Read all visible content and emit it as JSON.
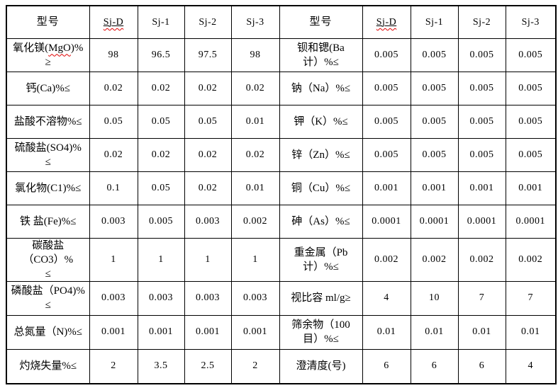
{
  "colors": {
    "spellcheck": "#e00000",
    "border": "#000000",
    "background": "#ffffff",
    "text": "#000000"
  },
  "header": {
    "left_title": "型号",
    "right_title": "型号",
    "models": [
      "Sj-D",
      "Sj-1",
      "Sj-2",
      "Sj-3"
    ],
    "misspelled_model": "Sj-D"
  },
  "rows": [
    {
      "left": {
        "pre": "氧化镁(",
        "mark": "MgO",
        "post": ")%\n≥",
        "values": [
          "98",
          "96.5",
          "97.5",
          "98"
        ]
      },
      "right": {
        "pre": "钡和锶(Ba\n计）%≤",
        "mark": "",
        "post": "",
        "values": [
          "0.005",
          "0.005",
          "0.005",
          "0.005"
        ]
      }
    },
    {
      "left": {
        "pre": "钙(Ca)%≤",
        "mark": "",
        "post": "",
        "values": [
          "0.02",
          "0.02",
          "0.02",
          "0.02"
        ]
      },
      "right": {
        "pre": "钠（Na）%≤",
        "mark": "",
        "post": "",
        "values": [
          "0.005",
          "0.005",
          "0.005",
          "0.005"
        ]
      }
    },
    {
      "left": {
        "pre": "盐酸不溶物%≤",
        "mark": "",
        "post": "",
        "values": [
          "0.05",
          "0.05",
          "0.05",
          "0.01"
        ]
      },
      "right": {
        "pre": "钾（K）%≤",
        "mark": "",
        "post": "",
        "values": [
          "0.005",
          "0.005",
          "0.005",
          "0.005"
        ]
      }
    },
    {
      "left": {
        "pre": "硫酸盐(SO4)%\n≤",
        "mark": "",
        "post": "",
        "values": [
          "0.02",
          "0.02",
          "0.02",
          "0.02"
        ]
      },
      "right": {
        "pre": "锌（Zn）%≤",
        "mark": "",
        "post": "",
        "values": [
          "0.005",
          "0.005",
          "0.005",
          "0.005"
        ]
      }
    },
    {
      "left": {
        "pre": "氯化物(C1)%≤",
        "mark": "",
        "post": "",
        "values": [
          "0.1",
          "0.05",
          "0.02",
          "0.01"
        ]
      },
      "right": {
        "pre": "铜（Cu）%≤",
        "mark": "",
        "post": "",
        "values": [
          "0.001",
          "0.001",
          "0.001",
          "0.001"
        ]
      }
    },
    {
      "left": {
        "pre": "铁 盐(Fe)%≤",
        "mark": "",
        "post": "",
        "values": [
          "0.003",
          "0.005",
          "0.003",
          "0.002"
        ]
      },
      "right": {
        "pre": "砷（As）%≤",
        "mark": "",
        "post": "",
        "values": [
          "0.0001",
          "0.0001",
          "0.0001",
          "0.0001"
        ]
      }
    },
    {
      "left": {
        "pre": "碳酸盐（CO3）%\n≤",
        "mark": "",
        "post": "",
        "values": [
          "1",
          "1",
          "1",
          "1"
        ]
      },
      "right": {
        "pre": "重金属（Pb\n计）%≤",
        "mark": "",
        "post": "",
        "values": [
          "0.002",
          "0.002",
          "0.002",
          "0.002"
        ]
      }
    },
    {
      "left": {
        "pre": "磷酸盐（PO4)%\n≤",
        "mark": "",
        "post": "",
        "values": [
          "0.003",
          "0.003",
          "0.003",
          "0.003"
        ]
      },
      "right": {
        "pre": "视比容 ml/g≥",
        "mark": "",
        "post": "",
        "values": [
          "4",
          "10",
          "7",
          "7"
        ]
      }
    },
    {
      "left": {
        "pre": "总氮量（N)%≤",
        "mark": "",
        "post": "",
        "values": [
          "0.001",
          "0.001",
          "0.001",
          "0.001"
        ]
      },
      "right": {
        "pre": "筛余物（100\n目）%≤",
        "mark": "",
        "post": "",
        "values": [
          "0.01",
          "0.01",
          "0.01",
          "0.01"
        ]
      }
    },
    {
      "left": {
        "pre": "灼烧失量%≤",
        "mark": "",
        "post": "",
        "values": [
          "2",
          "3.5",
          "2.5",
          "2"
        ]
      },
      "right": {
        "pre": "澄清度(号)",
        "mark": "",
        "post": "",
        "values": [
          "6",
          "6",
          "6",
          "4"
        ]
      }
    }
  ]
}
